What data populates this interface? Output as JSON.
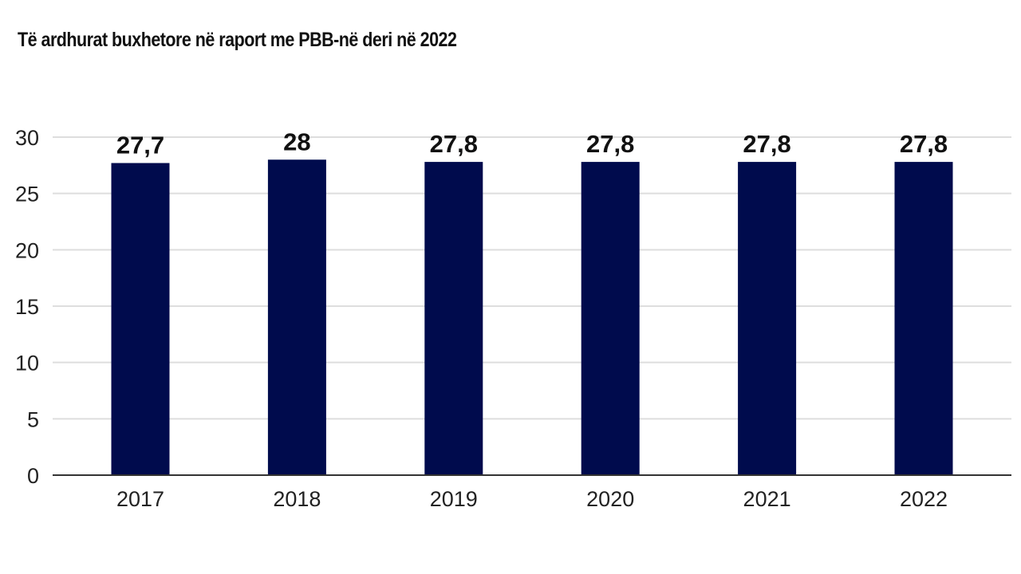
{
  "chart_data": {
    "type": "bar",
    "title": "Të ardhurat buxhetore në raport me PBB-në deri në 2022",
    "categories": [
      "2017",
      "2018",
      "2019",
      "2020",
      "2021",
      "2022"
    ],
    "values": [
      27.7,
      28,
      27.8,
      27.8,
      27.8,
      27.8
    ],
    "data_labels": [
      "27,7",
      "28",
      "27,8",
      "27,8",
      "27,8",
      "27,8"
    ],
    "ylim": [
      0,
      30
    ],
    "yticks": [
      0,
      5,
      10,
      15,
      20,
      25,
      30
    ],
    "xlabel": "",
    "ylabel": "",
    "grid": true,
    "legend": "none",
    "colors": {
      "bar": "#000b4d",
      "grid": "#dedede",
      "axis": "#333333"
    }
  }
}
